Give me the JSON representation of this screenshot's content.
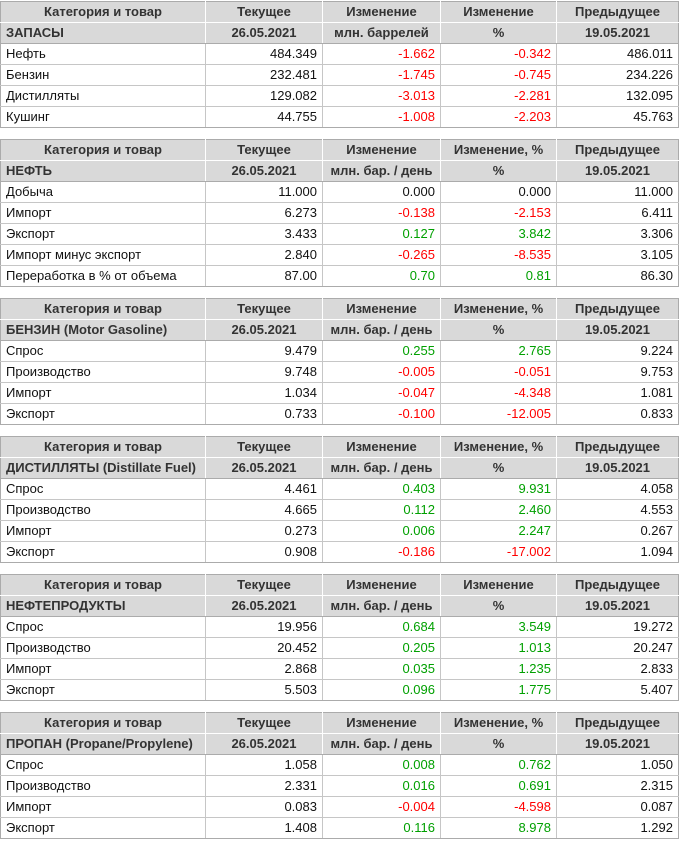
{
  "colors": {
    "positive": "#00a000",
    "negative": "#ff0000",
    "header_bg": "#d9d9d9",
    "header_text": "#333333",
    "border": "#c6c6c6"
  },
  "tables": [
    {
      "id": "stocks",
      "header": {
        "col_category": "Категория и товар",
        "col_current": "Текущее",
        "col_change": "Изменение",
        "col_change_pct": "Изменение",
        "col_previous": "Предыдущее",
        "title": "ЗАПАСЫ",
        "current_date": "26.05.2021",
        "unit": "млн. баррелей",
        "pct_symbol": "%",
        "previous_date": "19.05.2021"
      },
      "rows": [
        {
          "label": "Нефть",
          "current": "484.349",
          "change": "-1.662",
          "change_pct": "-0.342",
          "previous": "486.011"
        },
        {
          "label": "Бензин",
          "current": "232.481",
          "change": "-1.745",
          "change_pct": "-0.745",
          "previous": "234.226"
        },
        {
          "label": "Дистилляты",
          "current": "129.082",
          "change": "-3.013",
          "change_pct": "-2.281",
          "previous": "132.095"
        },
        {
          "label": "Кушинг",
          "current": "44.755",
          "change": "-1.008",
          "change_pct": "-2.203",
          "previous": "45.763"
        }
      ]
    },
    {
      "id": "crude-oil",
      "header": {
        "col_category": "Категория и товар",
        "col_current": "Текущее",
        "col_change": "Изменение",
        "col_change_pct": "Изменение, %",
        "col_previous": "Предыдущее",
        "title": "НЕФТЬ",
        "current_date": "26.05.2021",
        "unit": "млн. бар. / день",
        "pct_symbol": "%",
        "previous_date": "19.05.2021"
      },
      "rows": [
        {
          "label": "Добыча",
          "current": "11.000",
          "change": "0.000",
          "change_pct": "0.000",
          "previous": "11.000"
        },
        {
          "label": "Импорт",
          "current": "6.273",
          "change": "-0.138",
          "change_pct": "-2.153",
          "previous": "6.411"
        },
        {
          "label": "Экспорт",
          "current": "3.433",
          "change": "0.127",
          "change_pct": "3.842",
          "previous": "3.306"
        },
        {
          "label": "Импорт минус экспорт",
          "current": "2.840",
          "change": "-0.265",
          "change_pct": "-8.535",
          "previous": "3.105"
        },
        {
          "label": "Переработка в % от объема",
          "current": "87.00",
          "change": "0.70",
          "change_pct": "0.81",
          "previous": "86.30"
        }
      ]
    },
    {
      "id": "gasoline",
      "header": {
        "col_category": "Категория и товар",
        "col_current": "Текущее",
        "col_change": "Изменение",
        "col_change_pct": "Изменение, %",
        "col_previous": "Предыдущее",
        "title": "БЕНЗИН (Motor Gasoline)",
        "current_date": "26.05.2021",
        "unit": "млн. бар. / день",
        "pct_symbol": "%",
        "previous_date": "19.05.2021"
      },
      "rows": [
        {
          "label": "Спрос",
          "current": "9.479",
          "change": "0.255",
          "change_pct": "2.765",
          "previous": "9.224"
        },
        {
          "label": "Производство",
          "current": "9.748",
          "change": "-0.005",
          "change_pct": "-0.051",
          "previous": "9.753"
        },
        {
          "label": "Импорт",
          "current": "1.034",
          "change": "-0.047",
          "change_pct": "-4.348",
          "previous": "1.081"
        },
        {
          "label": "Экспорт",
          "current": "0.733",
          "change": "-0.100",
          "change_pct": "-12.005",
          "previous": "0.833"
        }
      ]
    },
    {
      "id": "distillates",
      "header": {
        "col_category": "Категория и товар",
        "col_current": "Текущее",
        "col_change": "Изменение",
        "col_change_pct": "Изменение, %",
        "col_previous": "Предыдущее",
        "title": "ДИСТИЛЛЯТЫ (Distillate Fuel)",
        "current_date": "26.05.2021",
        "unit": "млн. бар. / день",
        "pct_symbol": "%",
        "previous_date": "19.05.2021"
      },
      "rows": [
        {
          "label": "Спрос",
          "current": "4.461",
          "change": "0.403",
          "change_pct": "9.931",
          "previous": "4.058"
        },
        {
          "label": "Производство",
          "current": "4.665",
          "change": "0.112",
          "change_pct": "2.460",
          "previous": "4.553"
        },
        {
          "label": "Импорт",
          "current": "0.273",
          "change": "0.006",
          "change_pct": "2.247",
          "previous": "0.267"
        },
        {
          "label": "Экспорт",
          "current": "0.908",
          "change": "-0.186",
          "change_pct": "-17.002",
          "previous": "1.094"
        }
      ]
    },
    {
      "id": "petroleum-products",
      "header": {
        "col_category": "Категория и товар",
        "col_current": "Текущее",
        "col_change": "Изменение",
        "col_change_pct": "Изменение",
        "col_previous": "Предыдущее",
        "title": "НЕФТЕПРОДУКТЫ",
        "current_date": "26.05.2021",
        "unit": "млн. бар. / день",
        "pct_symbol": "%",
        "previous_date": "19.05.2021"
      },
      "rows": [
        {
          "label": "Спрос",
          "current": "19.956",
          "change": "0.684",
          "change_pct": "3.549",
          "previous": "19.272"
        },
        {
          "label": "Производство",
          "current": "20.452",
          "change": "0.205",
          "change_pct": "1.013",
          "previous": "20.247"
        },
        {
          "label": "Импорт",
          "current": "2.868",
          "change": "0.035",
          "change_pct": "1.235",
          "previous": "2.833"
        },
        {
          "label": "Экспорт",
          "current": "5.503",
          "change": "0.096",
          "change_pct": "1.775",
          "previous": "5.407"
        }
      ]
    },
    {
      "id": "propane",
      "header": {
        "col_category": "Категория и товар",
        "col_current": "Текущее",
        "col_change": "Изменение",
        "col_change_pct": "Изменение, %",
        "col_previous": "Предыдущее",
        "title": "ПРОПАН (Propane/Propylene)",
        "current_date": "26.05.2021",
        "unit": "млн. бар. / день",
        "pct_symbol": "%",
        "previous_date": "19.05.2021"
      },
      "rows": [
        {
          "label": "Спрос",
          "current": "1.058",
          "change": "0.008",
          "change_pct": "0.762",
          "previous": "1.050"
        },
        {
          "label": "Производство",
          "current": "2.331",
          "change": "0.016",
          "change_pct": "0.691",
          "previous": "2.315"
        },
        {
          "label": "Импорт",
          "current": "0.083",
          "change": "-0.004",
          "change_pct": "-4.598",
          "previous": "0.087"
        },
        {
          "label": "Экспорт",
          "current": "1.408",
          "change": "0.116",
          "change_pct": "8.978",
          "previous": "1.292"
        }
      ]
    }
  ]
}
